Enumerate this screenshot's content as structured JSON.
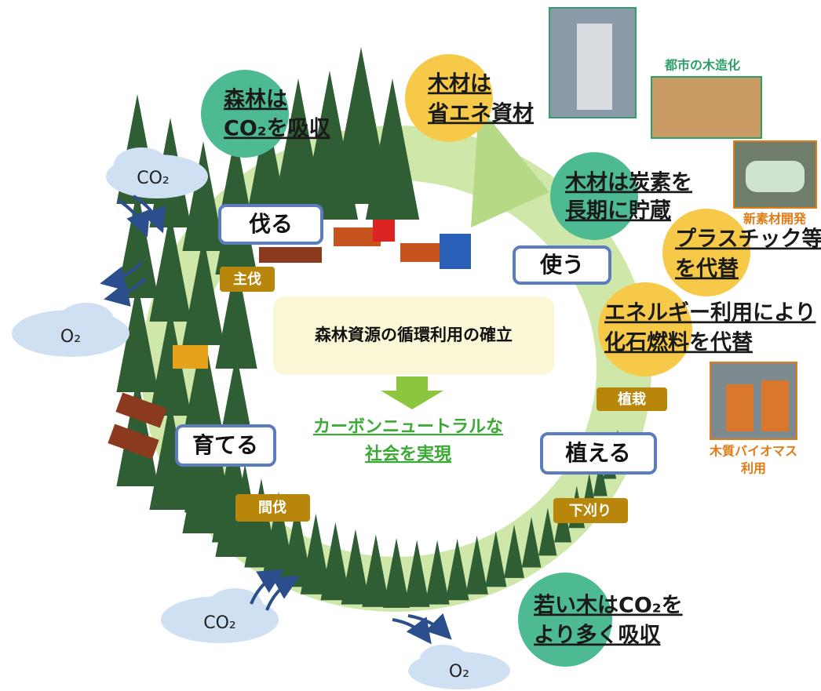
{
  "bubbles": [
    {
      "lines": [
        "森林は",
        "CO₂を吸収"
      ]
    },
    {
      "lines": [
        "木材は",
        "省エネ資材"
      ]
    },
    {
      "lines": [
        "木材は炭素を",
        "長期に貯蔵"
      ]
    },
    {
      "lines": [
        "プラスチック等",
        "を代替"
      ]
    },
    {
      "lines": [
        "エネルギー利用により",
        "化石燃料を代替"
      ]
    },
    {
      "lines": [
        "若い木はCO₂を",
        "より多く吸収"
      ]
    }
  ],
  "stages": [
    "伐る",
    "使う",
    "植える",
    "育てる"
  ],
  "tags": [
    "主伐",
    "植栽",
    "下刈り",
    "間伐"
  ],
  "center": {
    "title": "森林資源の循環利用の確立",
    "result": [
      "カーボンニュートラルな",
      "社会を実現"
    ]
  },
  "photo_captions": [
    {
      "lines": [
        "都市の木造化"
      ]
    },
    {
      "lines": [
        "新素材開発"
      ]
    },
    {
      "lines": [
        "木質バイオマス",
        "利用"
      ]
    }
  ],
  "clouds": [
    "CO₂",
    "O₂",
    "CO₂",
    "O₂"
  ]
}
